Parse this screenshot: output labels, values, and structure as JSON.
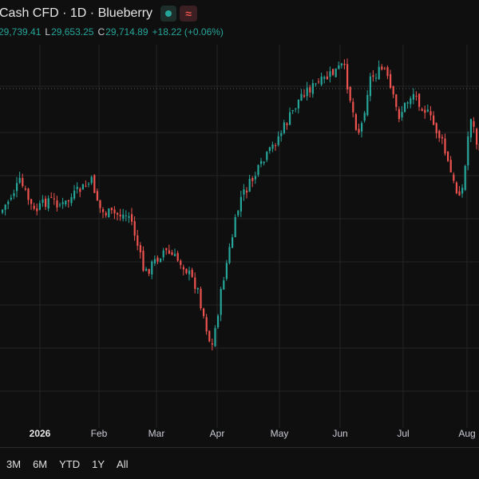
{
  "header": {
    "title": "Cash CFD · 1D · Blueberry",
    "live_icon": "live-dot",
    "indicator_icon": "wave-icon",
    "indicator_glyph": "≈",
    "colors": {
      "live": "#26a69a",
      "wave": "#ef5350"
    }
  },
  "ohlc": {
    "high_value": "29,739.41",
    "low_label": "L",
    "low_value": "29,653.25",
    "close_label": "C",
    "close_value": "29,714.89",
    "change": "+18.22 (+0.06%)"
  },
  "x_axis": {
    "labels": [
      "2026",
      "Feb",
      "Mar",
      "Apr",
      "May",
      "Jun",
      "Jul",
      "Aug"
    ]
  },
  "range_buttons": [
    "3M",
    "6M",
    "YTD",
    "1Y",
    "All"
  ],
  "colors": {
    "background": "#0f0f0f",
    "up": "#26a69a",
    "down": "#ef5350",
    "grid": "#242424",
    "price_line": "#555a66",
    "text": "#d1d4dc"
  },
  "chart_data": {
    "type": "candlestick",
    "x_ticks": [
      "2026",
      "Feb",
      "Mar",
      "Apr",
      "May",
      "Jun",
      "Jul",
      "Aug"
    ],
    "anchors": [
      {
        "pos": 0.0,
        "value": 0.53
      },
      {
        "pos": 0.04,
        "value": 0.62
      },
      {
        "pos": 0.07,
        "value": 0.53
      },
      {
        "pos": 0.1,
        "value": 0.57
      },
      {
        "pos": 0.13,
        "value": 0.55
      },
      {
        "pos": 0.16,
        "value": 0.59
      },
      {
        "pos": 0.19,
        "value": 0.62
      },
      {
        "pos": 0.21,
        "value": 0.53
      },
      {
        "pos": 0.27,
        "value": 0.52
      },
      {
        "pos": 0.3,
        "value": 0.35
      },
      {
        "pos": 0.34,
        "value": 0.42
      },
      {
        "pos": 0.38,
        "value": 0.38
      },
      {
        "pos": 0.41,
        "value": 0.31
      },
      {
        "pos": 0.44,
        "value": 0.13
      },
      {
        "pos": 0.465,
        "value": 0.34
      },
      {
        "pos": 0.5,
        "value": 0.57
      },
      {
        "pos": 0.55,
        "value": 0.68
      },
      {
        "pos": 0.6,
        "value": 0.8
      },
      {
        "pos": 0.63,
        "value": 0.88
      },
      {
        "pos": 0.67,
        "value": 0.91
      },
      {
        "pos": 0.715,
        "value": 0.96
      },
      {
        "pos": 0.74,
        "value": 0.79
      },
      {
        "pos": 0.75,
        "value": 0.76
      },
      {
        "pos": 0.77,
        "value": 0.92
      },
      {
        "pos": 0.8,
        "value": 0.95
      },
      {
        "pos": 0.83,
        "value": 0.81
      },
      {
        "pos": 0.86,
        "value": 0.88
      },
      {
        "pos": 0.89,
        "value": 0.82
      },
      {
        "pos": 0.92,
        "value": 0.74
      },
      {
        "pos": 0.95,
        "value": 0.59
      },
      {
        "pos": 0.965,
        "value": 0.6
      },
      {
        "pos": 0.98,
        "value": 0.82
      },
      {
        "pos": 1.0,
        "value": 0.69
      }
    ]
  }
}
